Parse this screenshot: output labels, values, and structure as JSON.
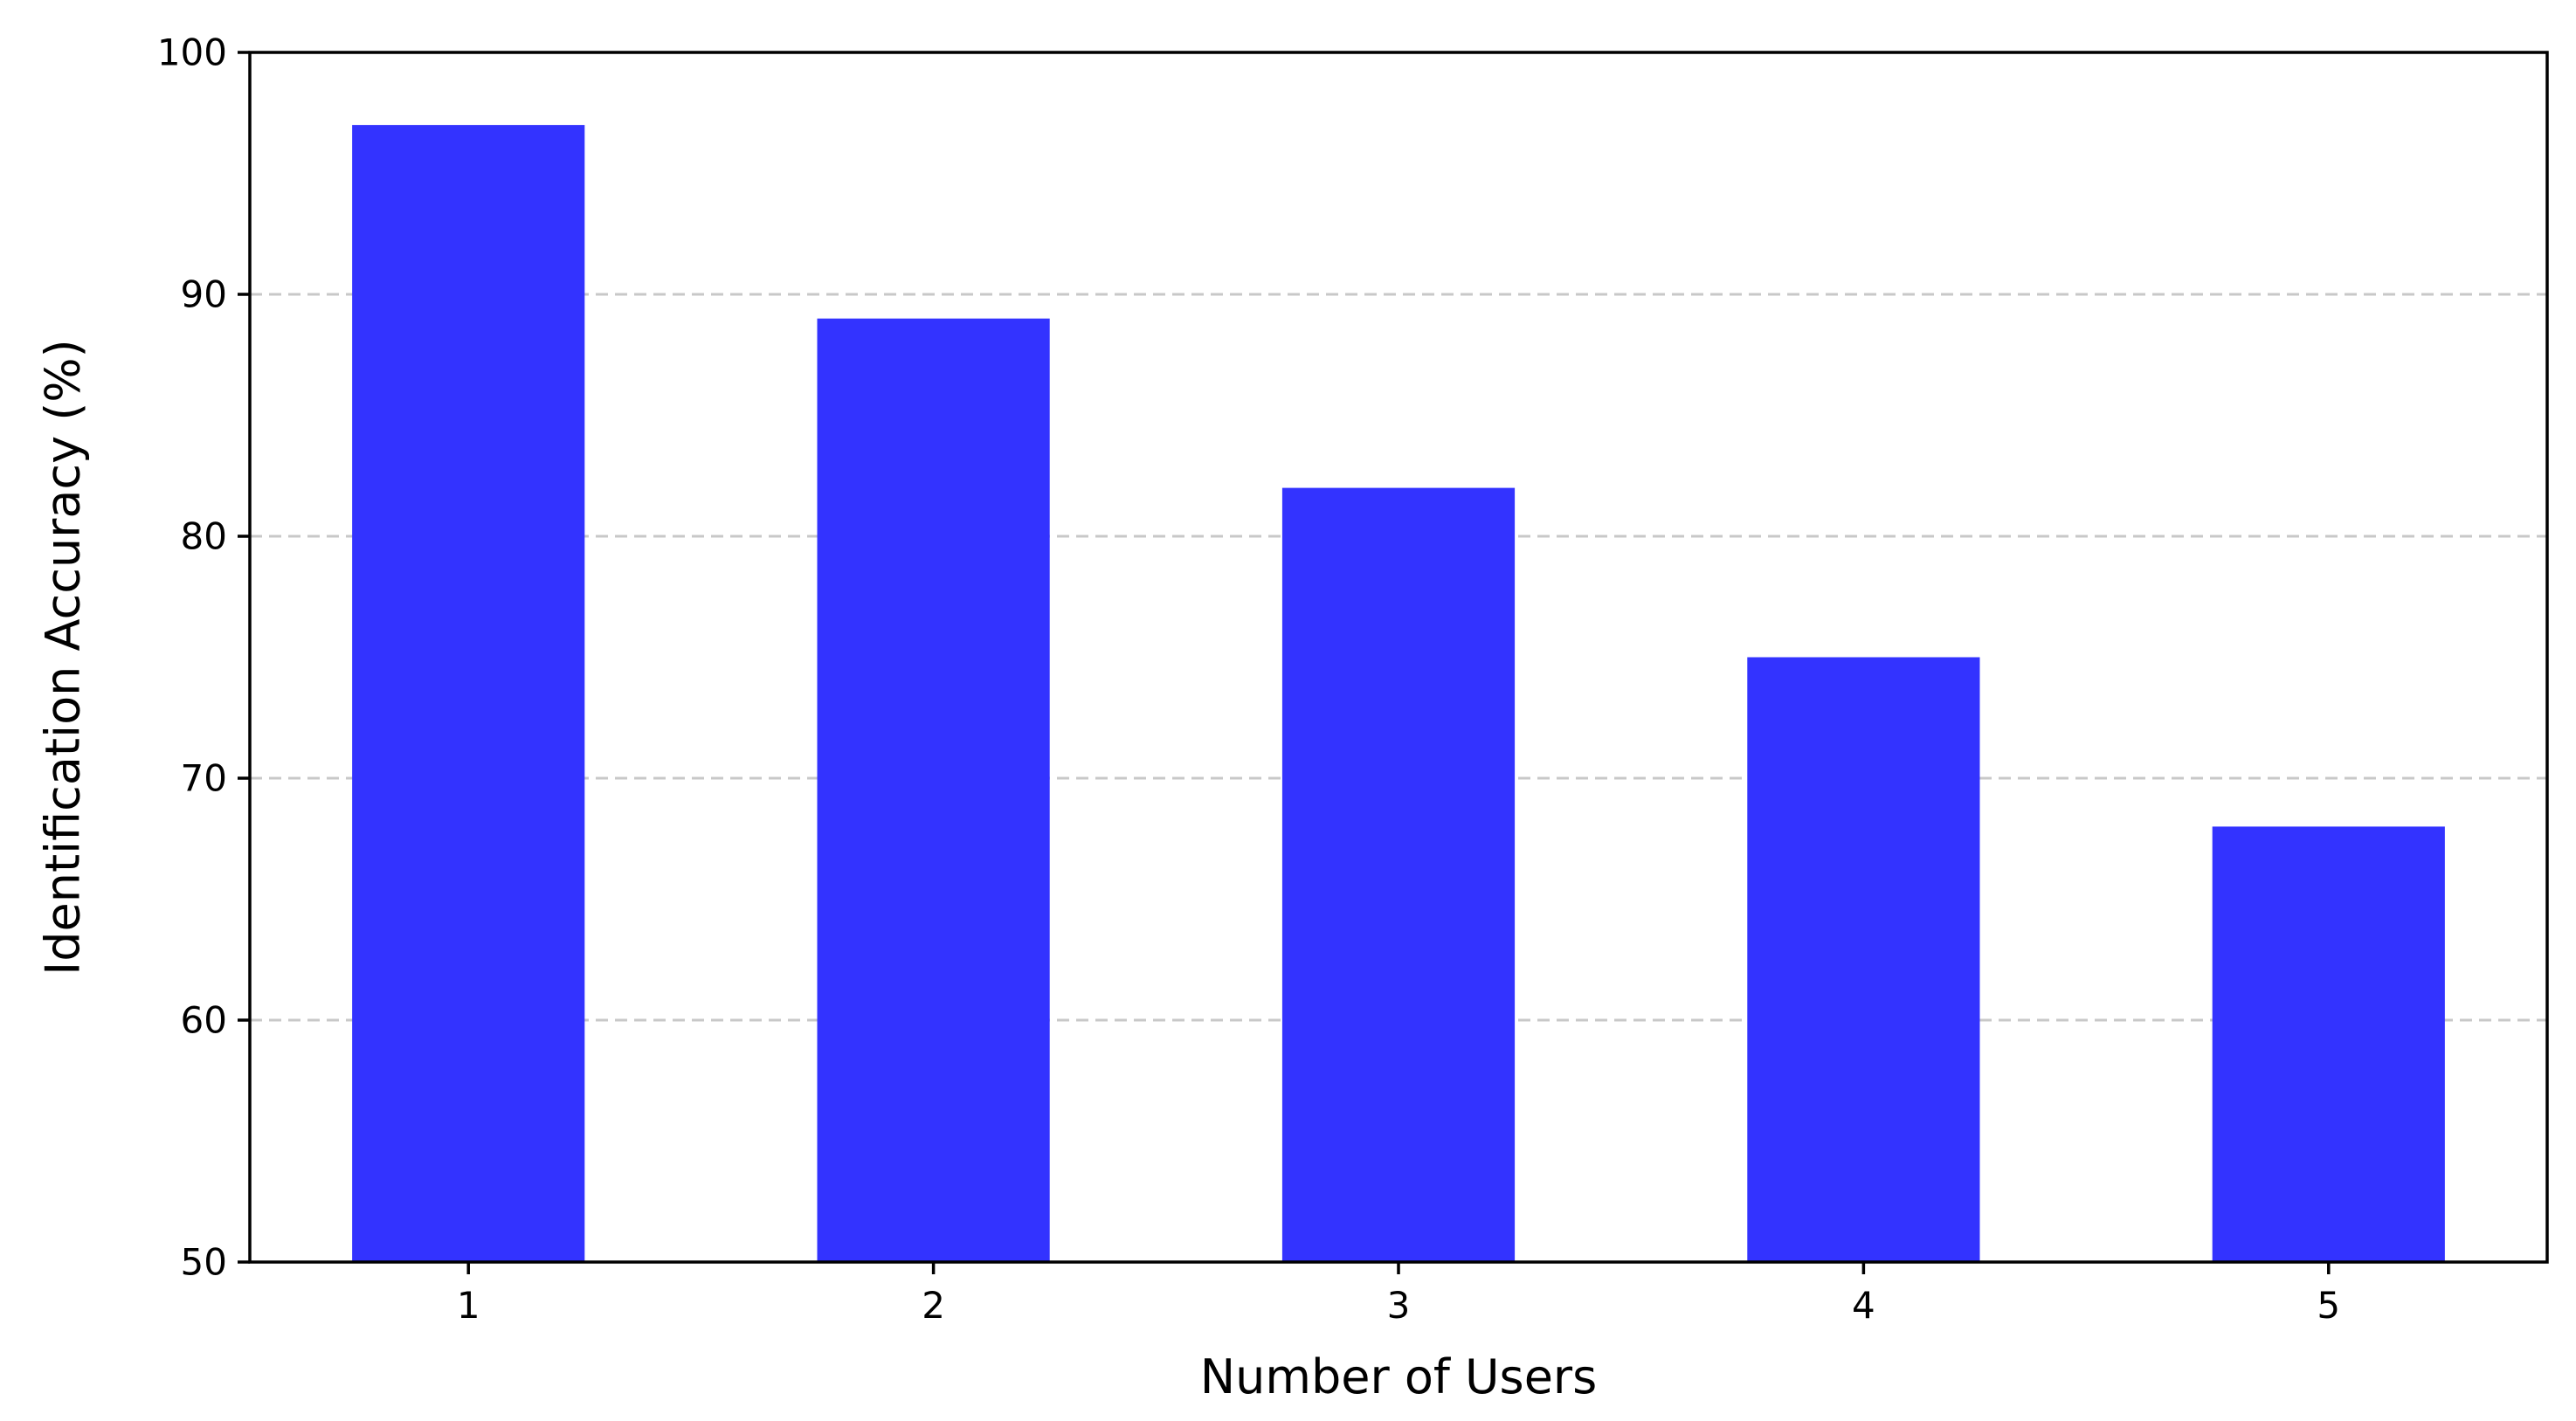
{
  "chart_data": {
    "type": "bar",
    "categories": [
      "1",
      "2",
      "3",
      "4",
      "5"
    ],
    "values": [
      97,
      89,
      82,
      75,
      68
    ],
    "title": "",
    "xlabel": "Number of Users",
    "ylabel": "Identification Accuracy (%)",
    "ylim": [
      50,
      100
    ],
    "yticks": [
      "50",
      "60",
      "70",
      "80",
      "90",
      "100"
    ],
    "grid": "y-dashed",
    "bar_color": "#3333ff",
    "grid_color": "#c8c8c8"
  }
}
